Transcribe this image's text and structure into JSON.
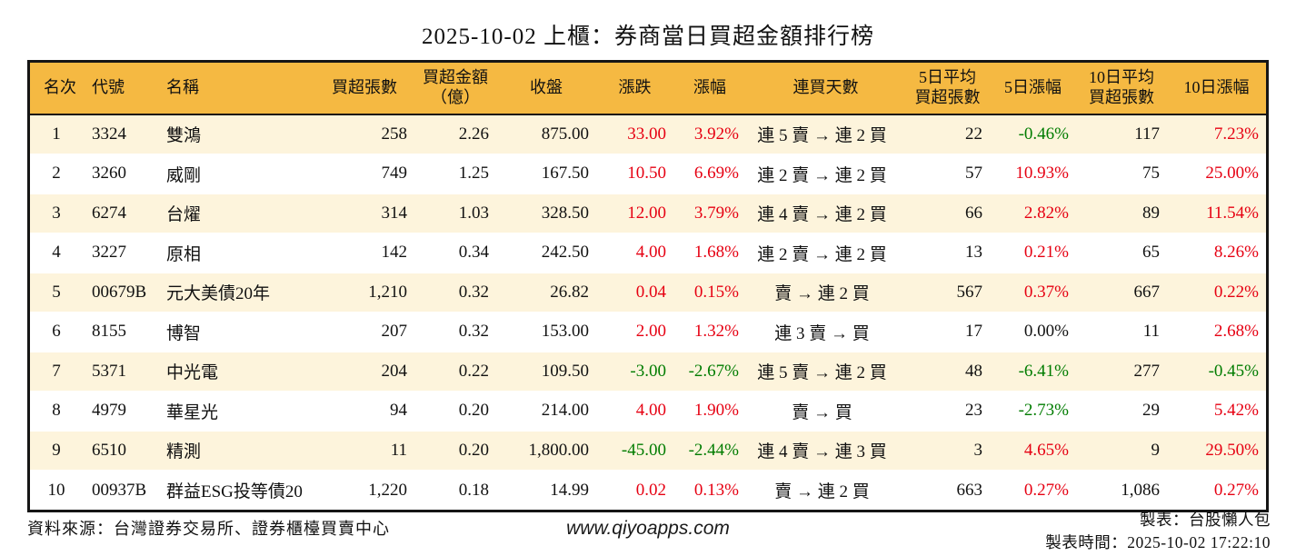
{
  "title": "2025-10-02 上櫃：券商當日買超金額排行榜",
  "colors": {
    "header_gold": "#F5B942",
    "row_cream": "#FDF4DC",
    "up_red": "#E60012",
    "down_green": "#007C00"
  },
  "chart_data": {
    "type": "table",
    "title": "2025-10-02 上櫃：券商當日買超金額排行榜",
    "columns": [
      "名次",
      "代號",
      "名稱",
      "買超張數",
      "買超金額\n（億）",
      "收盤",
      "漲跌",
      "漲幅",
      "連買天數",
      "5日平均\n買超張數",
      "5日漲幅",
      "10日平均\n買超張數",
      "10日漲幅"
    ],
    "rows": [
      {
        "rank": "1",
        "code": "3324",
        "name": "雙鴻",
        "shares": "258",
        "amount": "2.26",
        "close": "875.00",
        "change": "33.00",
        "change_dir": "up",
        "pct": "3.92%",
        "pct_dir": "up",
        "streak": "連 5 賣 → 連 2 買",
        "avg5": "22",
        "pct5": "-0.46%",
        "pct5_dir": "down",
        "avg10": "117",
        "pct10": "7.23%",
        "pct10_dir": "up"
      },
      {
        "rank": "2",
        "code": "3260",
        "name": "威剛",
        "shares": "749",
        "amount": "1.25",
        "close": "167.50",
        "change": "10.50",
        "change_dir": "up",
        "pct": "6.69%",
        "pct_dir": "up",
        "streak": "連 2 賣 → 連 2 買",
        "avg5": "57",
        "pct5": "10.93%",
        "pct5_dir": "up",
        "avg10": "75",
        "pct10": "25.00%",
        "pct10_dir": "up"
      },
      {
        "rank": "3",
        "code": "6274",
        "name": "台燿",
        "shares": "314",
        "amount": "1.03",
        "close": "328.50",
        "change": "12.00",
        "change_dir": "up",
        "pct": "3.79%",
        "pct_dir": "up",
        "streak": "連 4 賣 → 連 2 買",
        "avg5": "66",
        "pct5": "2.82%",
        "pct5_dir": "up",
        "avg10": "89",
        "pct10": "11.54%",
        "pct10_dir": "up"
      },
      {
        "rank": "4",
        "code": "3227",
        "name": "原相",
        "shares": "142",
        "amount": "0.34",
        "close": "242.50",
        "change": "4.00",
        "change_dir": "up",
        "pct": "1.68%",
        "pct_dir": "up",
        "streak": "連 2 賣 → 連 2 買",
        "avg5": "13",
        "pct5": "0.21%",
        "pct5_dir": "up",
        "avg10": "65",
        "pct10": "8.26%",
        "pct10_dir": "up"
      },
      {
        "rank": "5",
        "code": "00679B",
        "name": "元大美債20年",
        "shares": "1,210",
        "amount": "0.32",
        "close": "26.82",
        "change": "0.04",
        "change_dir": "up",
        "pct": "0.15%",
        "pct_dir": "up",
        "streak": "賣 → 連 2 買",
        "avg5": "567",
        "pct5": "0.37%",
        "pct5_dir": "up",
        "avg10": "667",
        "pct10": "0.22%",
        "pct10_dir": "up"
      },
      {
        "rank": "6",
        "code": "8155",
        "name": "博智",
        "shares": "207",
        "amount": "0.32",
        "close": "153.00",
        "change": "2.00",
        "change_dir": "up",
        "pct": "1.32%",
        "pct_dir": "up",
        "streak": "連 3 賣 → 買",
        "avg5": "17",
        "pct5": "0.00%",
        "pct5_dir": "flat",
        "avg10": "11",
        "pct10": "2.68%",
        "pct10_dir": "up"
      },
      {
        "rank": "7",
        "code": "5371",
        "name": "中光電",
        "shares": "204",
        "amount": "0.22",
        "close": "109.50",
        "change": "-3.00",
        "change_dir": "down",
        "pct": "-2.67%",
        "pct_dir": "down",
        "streak": "連 5 賣 → 連 2 買",
        "avg5": "48",
        "pct5": "-6.41%",
        "pct5_dir": "down",
        "avg10": "277",
        "pct10": "-0.45%",
        "pct10_dir": "down"
      },
      {
        "rank": "8",
        "code": "4979",
        "name": "華星光",
        "shares": "94",
        "amount": "0.20",
        "close": "214.00",
        "change": "4.00",
        "change_dir": "up",
        "pct": "1.90%",
        "pct_dir": "up",
        "streak": "賣 → 買",
        "avg5": "23",
        "pct5": "-2.73%",
        "pct5_dir": "down",
        "avg10": "29",
        "pct10": "5.42%",
        "pct10_dir": "up"
      },
      {
        "rank": "9",
        "code": "6510",
        "name": "精測",
        "shares": "11",
        "amount": "0.20",
        "close": "1,800.00",
        "change": "-45.00",
        "change_dir": "down",
        "pct": "-2.44%",
        "pct_dir": "down",
        "streak": "連 4 賣 → 連 3 買",
        "avg5": "3",
        "pct5": "4.65%",
        "pct5_dir": "up",
        "avg10": "9",
        "pct10": "29.50%",
        "pct10_dir": "up"
      },
      {
        "rank": "10",
        "code": "00937B",
        "name": "群益ESG投等債20",
        "shares": "1,220",
        "amount": "0.18",
        "close": "14.99",
        "change": "0.02",
        "change_dir": "up",
        "pct": "0.13%",
        "pct_dir": "up",
        "streak": "賣 → 連 2 買",
        "avg5": "663",
        "pct5": "0.27%",
        "pct5_dir": "up",
        "avg10": "1,086",
        "pct10": "0.27%",
        "pct10_dir": "up"
      }
    ]
  },
  "footer": {
    "source": "資料來源：台灣證券交易所、證券櫃檯買賣中心",
    "website": "www.qiyoapps.com",
    "author": "製表：台股懶人包",
    "generated": "製表時間：2025-10-02 17:22:10"
  }
}
